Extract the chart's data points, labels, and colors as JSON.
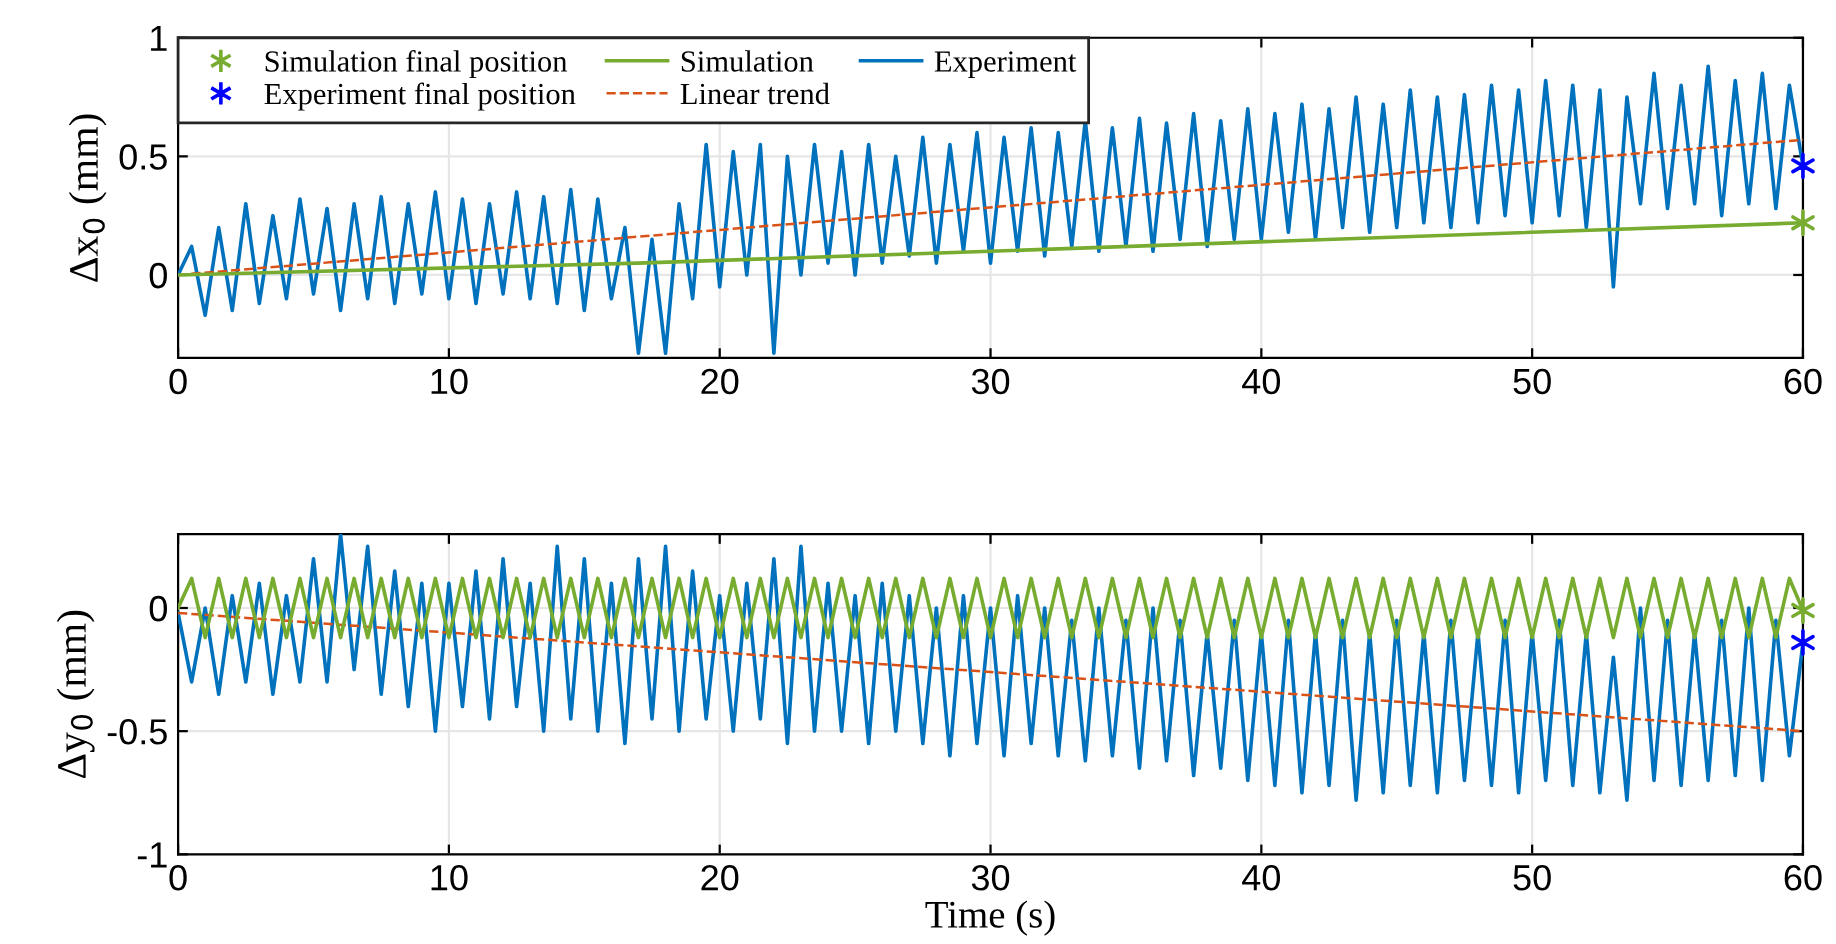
{
  "chart_data": [
    {
      "type": "line",
      "ylabel": "Δx$_{0}$ (mm)",
      "xlim": [
        0,
        60
      ],
      "xticks": [
        0,
        10,
        20,
        30,
        40,
        50,
        60
      ],
      "ylim": [
        -0.35,
        1
      ],
      "yticks": [
        0,
        0.5,
        1
      ],
      "grid": true,
      "legend": "top left",
      "x": [
        0,
        0.5,
        1,
        1.5,
        2,
        2.5,
        3,
        3.5,
        4,
        4.5,
        5,
        5.5,
        6,
        6.5,
        7,
        7.5,
        8,
        8.5,
        9,
        9.5,
        10,
        10.5,
        11,
        11.5,
        12,
        12.5,
        13,
        13.5,
        14,
        14.5,
        15,
        15.5,
        16,
        16.5,
        17,
        17.5,
        18,
        18.5,
        19,
        19.5,
        20,
        20.5,
        21,
        21.5,
        22,
        22.5,
        23,
        23.5,
        24,
        24.5,
        25,
        25.5,
        26,
        26.5,
        27,
        27.5,
        28,
        28.5,
        29,
        29.5,
        30,
        30.5,
        31,
        31.5,
        32,
        32.5,
        33,
        33.5,
        34,
        34.5,
        35,
        35.5,
        36,
        36.5,
        37,
        37.5,
        38,
        38.5,
        39,
        39.5,
        40,
        40.5,
        41,
        41.5,
        42,
        42.5,
        43,
        43.5,
        44,
        44.5,
        45,
        45.5,
        46,
        46.5,
        47,
        47.5,
        48,
        48.5,
        49,
        49.5,
        50,
        50.5,
        51,
        51.5,
        52,
        52.5,
        53,
        53.5,
        54,
        54.5,
        55,
        55.5,
        56,
        56.5,
        57,
        57.5,
        58,
        58.5,
        59,
        59.5,
        60
      ],
      "series": [
        {
          "name": "Simulation final position",
          "type": "scatter",
          "marker": "cross",
          "color": "#77ac30",
          "x": [
            60
          ],
          "values": [
            0.22
          ]
        },
        {
          "name": "Experiment final position",
          "type": "scatter",
          "marker": "cross",
          "color": "#0000ff",
          "x": [
            60
          ],
          "values": [
            0.46
          ]
        },
        {
          "name": "Simulation",
          "color": "#77ac30",
          "x": [
            0,
            17,
            30,
            60
          ],
          "values": [
            0,
            0.05,
            0.1,
            0.22
          ]
        },
        {
          "name": "Linear trend",
          "line_style": "dashed",
          "color": "#d95319",
          "x": [
            0,
            60
          ],
          "values": [
            0,
            0.57
          ]
        },
        {
          "name": "Experiment",
          "color": "#0072bd",
          "values": [
            0,
            0.12,
            -0.17,
            0.2,
            -0.15,
            0.3,
            -0.12,
            0.25,
            -0.1,
            0.32,
            -0.08,
            0.28,
            -0.15,
            0.3,
            -0.1,
            0.33,
            -0.12,
            0.3,
            -0.08,
            0.35,
            -0.1,
            0.32,
            -0.12,
            0.3,
            -0.08,
            0.35,
            -0.1,
            0.33,
            -0.12,
            0.36,
            -0.15,
            0.32,
            -0.1,
            0.2,
            -0.33,
            0.15,
            -0.33,
            0.3,
            -0.1,
            0.55,
            -0.05,
            0.52,
            0.0,
            0.55,
            -0.33,
            0.5,
            0.0,
            0.55,
            0.05,
            0.52,
            0.0,
            0.55,
            0.05,
            0.5,
            0.08,
            0.58,
            0.05,
            0.55,
            0.1,
            0.6,
            0.05,
            0.58,
            0.1,
            0.62,
            0.08,
            0.6,
            0.12,
            0.65,
            0.1,
            0.62,
            0.12,
            0.66,
            0.1,
            0.64,
            0.15,
            0.68,
            0.12,
            0.65,
            0.15,
            0.7,
            0.15,
            0.68,
            0.18,
            0.72,
            0.15,
            0.7,
            0.2,
            0.75,
            0.18,
            0.72,
            0.2,
            0.78,
            0.22,
            0.75,
            0.2,
            0.76,
            0.22,
            0.8,
            0.25,
            0.78,
            0.22,
            0.82,
            0.25,
            0.8,
            0.2,
            0.78,
            -0.05,
            0.75,
            0.3,
            0.85,
            0.28,
            0.8,
            0.3,
            0.88,
            0.25,
            0.82,
            0.3,
            0.85,
            0.28,
            0.8,
            0.46
          ]
        }
      ]
    },
    {
      "type": "line",
      "xlabel": "Time (s)",
      "ylabel": "Δy$_{0}$ (mm)",
      "xlim": [
        0,
        60
      ],
      "xticks": [
        0,
        10,
        20,
        30,
        40,
        50,
        60
      ],
      "ylim": [
        -1,
        0.3
      ],
      "yticks": [
        -1,
        -0.5,
        0
      ],
      "grid": true,
      "x": [
        0,
        0.5,
        1,
        1.5,
        2,
        2.5,
        3,
        3.5,
        4,
        4.5,
        5,
        5.5,
        6,
        6.5,
        7,
        7.5,
        8,
        8.5,
        9,
        9.5,
        10,
        10.5,
        11,
        11.5,
        12,
        12.5,
        13,
        13.5,
        14,
        14.5,
        15,
        15.5,
        16,
        16.5,
        17,
        17.5,
        18,
        18.5,
        19,
        19.5,
        20,
        20.5,
        21,
        21.5,
        22,
        22.5,
        23,
        23.5,
        24,
        24.5,
        25,
        25.5,
        26,
        26.5,
        27,
        27.5,
        28,
        28.5,
        29,
        29.5,
        30,
        30.5,
        31,
        31.5,
        32,
        32.5,
        33,
        33.5,
        34,
        34.5,
        35,
        35.5,
        36,
        36.5,
        37,
        37.5,
        38,
        38.5,
        39,
        39.5,
        40,
        40.5,
        41,
        41.5,
        42,
        42.5,
        43,
        43.5,
        44,
        44.5,
        45,
        45.5,
        46,
        46.5,
        47,
        47.5,
        48,
        48.5,
        49,
        49.5,
        50,
        50.5,
        51,
        51.5,
        52,
        52.5,
        53,
        53.5,
        54,
        54.5,
        55,
        55.5,
        56,
        56.5,
        57,
        57.5,
        58,
        58.5,
        59,
        59.5,
        60
      ],
      "series": [
        {
          "type": "scatter",
          "marker": "cross",
          "color": "#77ac30",
          "x": [
            60
          ],
          "values": [
            -0.01
          ]
        },
        {
          "type": "scatter",
          "marker": "cross",
          "color": "#0000ff",
          "x": [
            60
          ],
          "values": [
            -0.14
          ]
        },
        {
          "color": "#77ac30",
          "values": [
            0,
            0.12,
            -0.12,
            0.12,
            -0.12,
            0.12,
            -0.12,
            0.12,
            -0.12,
            0.12,
            -0.12,
            0.12,
            -0.12,
            0.12,
            -0.12,
            0.12,
            -0.12,
            0.12,
            -0.12,
            0.12,
            -0.12,
            0.12,
            -0.12,
            0.12,
            -0.12,
            0.12,
            -0.12,
            0.12,
            -0.12,
            0.12,
            -0.12,
            0.12,
            -0.12,
            0.12,
            -0.12,
            0.12,
            -0.12,
            0.12,
            -0.12,
            0.12,
            -0.12,
            0.12,
            -0.12,
            0.12,
            -0.12,
            0.12,
            -0.12,
            0.12,
            -0.12,
            0.12,
            -0.12,
            0.12,
            -0.12,
            0.12,
            -0.12,
            0.12,
            -0.12,
            0.12,
            -0.12,
            0.12,
            -0.12,
            0.12,
            -0.12,
            0.12,
            -0.12,
            0.12,
            -0.12,
            0.12,
            -0.12,
            0.12,
            -0.12,
            0.12,
            -0.12,
            0.12,
            -0.12,
            0.12,
            -0.12,
            0.12,
            -0.12,
            0.12,
            -0.12,
            0.12,
            -0.12,
            0.12,
            -0.12,
            0.12,
            -0.12,
            0.12,
            -0.12,
            0.12,
            -0.12,
            0.12,
            -0.12,
            0.12,
            -0.12,
            0.12,
            -0.12,
            0.12,
            -0.12,
            0.12,
            -0.12,
            0.12,
            -0.12,
            0.12,
            -0.12,
            0.12,
            -0.12,
            0.12,
            -0.12,
            0.12,
            -0.12,
            0.12,
            -0.12,
            0.12,
            -0.12,
            0.12,
            -0.12,
            0.12,
            -0.12,
            0.12,
            -0.01
          ]
        },
        {
          "line_style": "dashed",
          "color": "#d95319",
          "x": [
            0,
            60
          ],
          "values": [
            -0.02,
            -0.5
          ]
        },
        {
          "color": "#0072bd",
          "values": [
            -0.02,
            -0.3,
            0.0,
            -0.35,
            0.05,
            -0.3,
            0.1,
            -0.35,
            0.05,
            -0.3,
            0.2,
            -0.3,
            0.3,
            -0.25,
            0.25,
            -0.35,
            0.15,
            -0.4,
            0.1,
            -0.5,
            0.1,
            -0.4,
            0.15,
            -0.45,
            0.2,
            -0.4,
            0.1,
            -0.5,
            0.25,
            -0.45,
            0.2,
            -0.5,
            0.1,
            -0.55,
            0.2,
            -0.45,
            0.25,
            -0.5,
            0.15,
            -0.45,
            0.05,
            -0.5,
            0.1,
            -0.45,
            0.2,
            -0.55,
            0.25,
            -0.5,
            0.1,
            -0.5,
            0.05,
            -0.55,
            0.1,
            -0.5,
            0.05,
            -0.55,
            0.0,
            -0.6,
            0.05,
            -0.55,
            0.0,
            -0.6,
            0.05,
            -0.55,
            0.0,
            -0.6,
            -0.05,
            -0.62,
            0.0,
            -0.6,
            -0.05,
            -0.65,
            0.0,
            -0.62,
            -0.05,
            -0.68,
            -0.1,
            -0.65,
            -0.05,
            -0.7,
            -0.1,
            -0.72,
            -0.05,
            -0.75,
            -0.1,
            -0.72,
            -0.05,
            -0.78,
            -0.1,
            -0.75,
            -0.05,
            -0.72,
            -0.1,
            -0.75,
            -0.05,
            -0.7,
            -0.1,
            -0.72,
            -0.05,
            -0.75,
            -0.1,
            -0.7,
            -0.05,
            -0.72,
            -0.1,
            -0.75,
            -0.2,
            -0.78,
            0.0,
            -0.7,
            -0.05,
            -0.72,
            -0.1,
            -0.7,
            -0.05,
            -0.68,
            0.0,
            -0.7,
            -0.05,
            -0.6,
            -0.14
          ]
        }
      ]
    }
  ]
}
